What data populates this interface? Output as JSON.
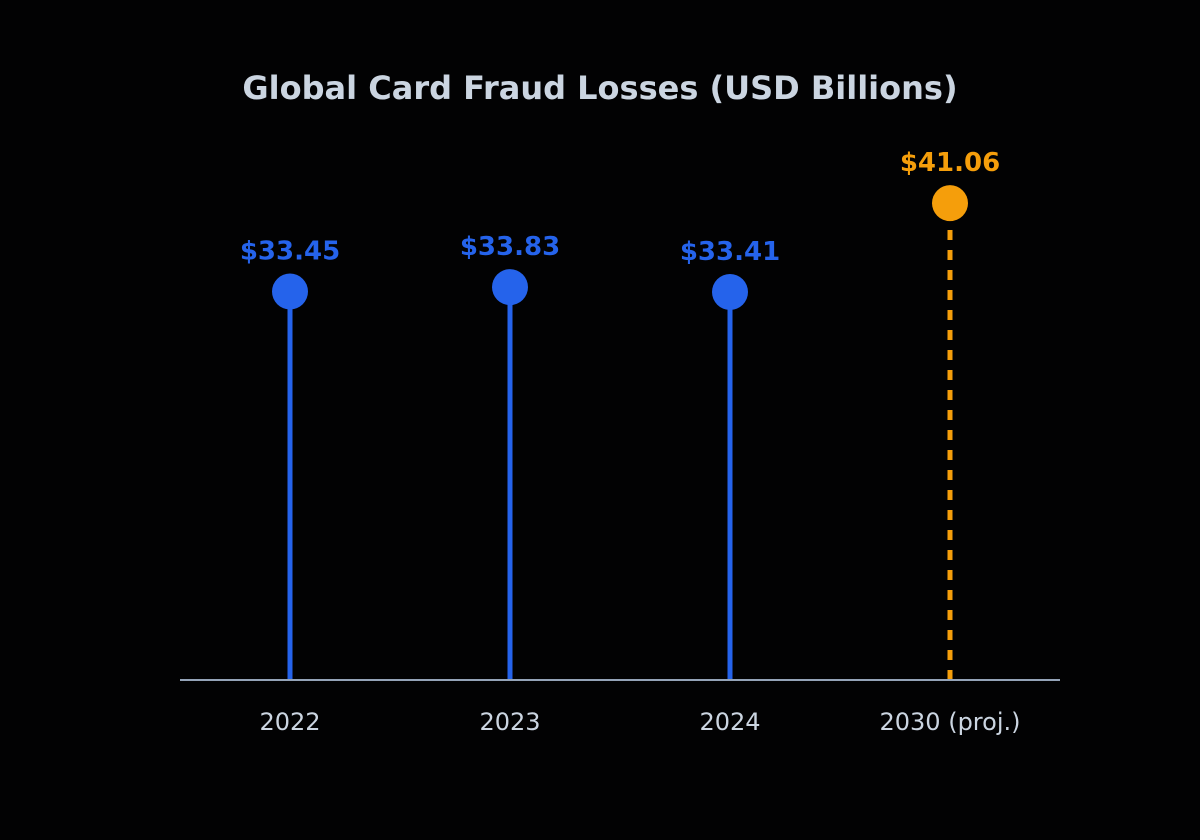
{
  "chart_data": {
    "type": "lollipop",
    "title": "Global Card Fraud Losses (USD Billions)",
    "xlabel": "",
    "ylabel": "",
    "categories": [
      "2022",
      "2023",
      "2024",
      "2030 (proj.)"
    ],
    "values": [
      33.45,
      33.83,
      33.41,
      41.06
    ],
    "value_labels": [
      "$33.45",
      "$33.83",
      "$33.41",
      "$41.06"
    ],
    "projected": [
      false,
      false,
      false,
      true
    ],
    "ylim": [
      0,
      46.5
    ],
    "grid": false,
    "legend": "none",
    "colors": {
      "background": "#020203",
      "actual": "#2563eb",
      "projected": "#f59e0b",
      "baseline": "#94a3b8",
      "title": "#cbd5e1",
      "tick_label": "#cbd5e1"
    }
  }
}
